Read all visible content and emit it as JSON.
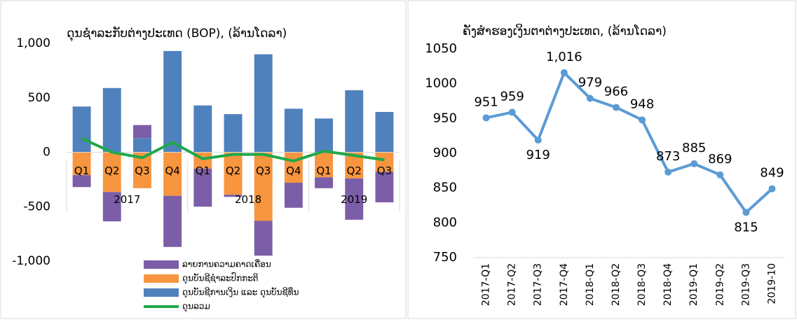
{
  "chart_data": [
    {
      "type": "bar",
      "title": "ດຸນຊຳລະກັບຕ່າງປະເທດ (BOP), (ລ້ານໂດລາ)",
      "categories": [
        "Q1",
        "Q2",
        "Q3",
        "Q4",
        "Q1",
        "Q2",
        "Q3",
        "Q4",
        "Q1",
        "Q2",
        "Q3"
      ],
      "x_groups": [
        {
          "label": "2017",
          "span": 4
        },
        {
          "label": "2018",
          "span": 4
        },
        {
          "label": "2019",
          "span": 3
        }
      ],
      "stacked": true,
      "series": [
        {
          "name": "ລາຍການຄວາມຄາດເຄື່ອນ",
          "color": "#7b5ea7",
          "values": [
            -110,
            -270,
            120,
            -470,
            -350,
            -20,
            -320,
            -230,
            -100,
            -380,
            -280
          ]
        },
        {
          "name": "ດຸນບັນຊີຊຳລະປົກກະຕິ",
          "color": "#f7963f",
          "values": [
            -210,
            -365,
            -330,
            -400,
            -150,
            -390,
            -630,
            -280,
            -230,
            -240,
            -180
          ]
        },
        {
          "name": "ດຸນບັນຊີການເງິນ ແລະ ດຸນບັນຊີທຶນ",
          "color": "#4f81bd",
          "values": [
            420,
            590,
            130,
            930,
            430,
            350,
            900,
            400,
            310,
            570,
            370
          ]
        },
        {
          "name": "ດຸນລວມ",
          "color": "#1fa84a",
          "type": "line",
          "values": [
            128,
            0,
            -50,
            90,
            -60,
            -20,
            -20,
            -80,
            10,
            -30,
            -70
          ]
        }
      ],
      "ylim": [
        -1000,
        1000
      ],
      "yticks": [
        {
          "value": -1000,
          "label": "-1,000"
        },
        -500,
        0,
        500,
        {
          "value": 1000,
          "label": "1,000"
        }
      ]
    },
    {
      "type": "line",
      "title": "ຄັງສຳຮອງເງິນຕາຕ່າງປະເທດ, (ລ້ານໂດລາ)",
      "categories": [
        "2017-Q1",
        "2017-Q2",
        "2017-Q3",
        "2017-Q4",
        "2018-Q1",
        "2018-Q2",
        "2018-Q3",
        "2018-Q4",
        "2019-Q1",
        "2019-Q2",
        "2019-Q3",
        "2019-10"
      ],
      "values": [
        951,
        959,
        919,
        1016,
        979,
        966,
        948,
        873,
        885,
        869,
        815,
        849
      ],
      "value_labels": [
        "951",
        "959",
        "919",
        "1,016",
        "979",
        "966",
        "948",
        "873",
        "885",
        "869",
        "815",
        "849"
      ],
      "color": "#5b9bd5",
      "ylim": [
        750,
        1050
      ],
      "yticks": [
        750,
        800,
        850,
        900,
        950,
        1000,
        1050
      ]
    }
  ]
}
